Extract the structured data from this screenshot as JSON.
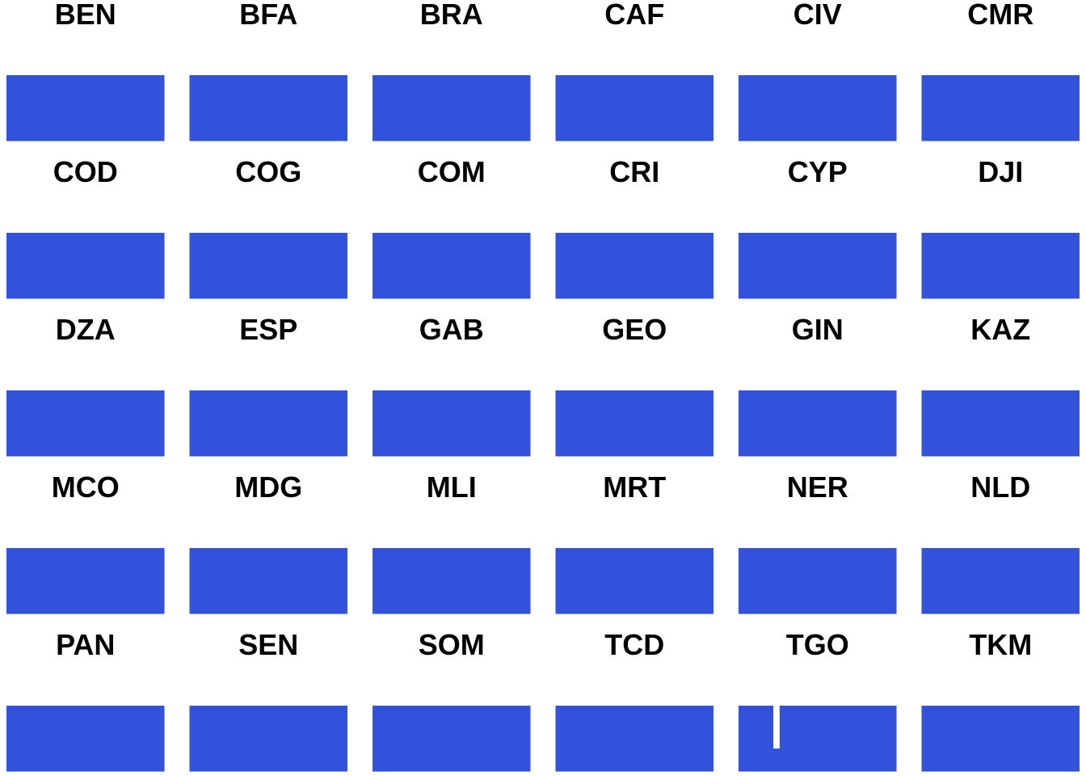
{
  "chart_data": {
    "type": "bar",
    "layout": "small-multiples",
    "grid": false,
    "legend": "none",
    "bar_color": "#3352DB",
    "panels": [
      {
        "label": "BEN",
        "segments": [
          {
            "start": 0,
            "end": 1
          }
        ]
      },
      {
        "label": "BFA",
        "segments": [
          {
            "start": 0,
            "end": 1
          }
        ]
      },
      {
        "label": "BRA",
        "segments": [
          {
            "start": 0,
            "end": 1
          }
        ]
      },
      {
        "label": "CAF",
        "segments": [
          {
            "start": 0,
            "end": 1
          }
        ]
      },
      {
        "label": "CIV",
        "segments": [
          {
            "start": 0,
            "end": 1
          }
        ]
      },
      {
        "label": "CMR",
        "segments": [
          {
            "start": 0,
            "end": 1
          }
        ]
      },
      {
        "label": "COD",
        "segments": [
          {
            "start": 0,
            "end": 1
          }
        ]
      },
      {
        "label": "COG",
        "segments": [
          {
            "start": 0,
            "end": 1
          }
        ]
      },
      {
        "label": "COM",
        "segments": [
          {
            "start": 0,
            "end": 1
          }
        ]
      },
      {
        "label": "CRI",
        "segments": [
          {
            "start": 0,
            "end": 1
          }
        ]
      },
      {
        "label": "CYP",
        "segments": [
          {
            "start": 0,
            "end": 1
          }
        ]
      },
      {
        "label": "DJI",
        "segments": [
          {
            "start": 0,
            "end": 1
          }
        ]
      },
      {
        "label": "DZA",
        "segments": [
          {
            "start": 0,
            "end": 1
          }
        ]
      },
      {
        "label": "ESP",
        "segments": [
          {
            "start": 0,
            "end": 1
          }
        ]
      },
      {
        "label": "GAB",
        "segments": [
          {
            "start": 0,
            "end": 1
          }
        ]
      },
      {
        "label": "GEO",
        "segments": [
          {
            "start": 0,
            "end": 1
          }
        ]
      },
      {
        "label": "GIN",
        "segments": [
          {
            "start": 0,
            "end": 1
          }
        ]
      },
      {
        "label": "KAZ",
        "segments": [
          {
            "start": 0,
            "end": 1
          }
        ]
      },
      {
        "label": "MCO",
        "segments": [
          {
            "start": 0,
            "end": 1
          }
        ]
      },
      {
        "label": "MDG",
        "segments": [
          {
            "start": 0,
            "end": 1
          }
        ]
      },
      {
        "label": "MLI",
        "segments": [
          {
            "start": 0,
            "end": 1
          }
        ]
      },
      {
        "label": "MRT",
        "segments": [
          {
            "start": 0,
            "end": 1
          }
        ]
      },
      {
        "label": "NER",
        "segments": [
          {
            "start": 0,
            "end": 1
          }
        ]
      },
      {
        "label": "NLD",
        "segments": [
          {
            "start": 0,
            "end": 1
          }
        ]
      },
      {
        "label": "PAN",
        "segments": [
          {
            "start": 0,
            "end": 1
          }
        ]
      },
      {
        "label": "SEN",
        "segments": [
          {
            "start": 0,
            "end": 1
          }
        ]
      },
      {
        "label": "SOM",
        "segments": [
          {
            "start": 0,
            "end": 1
          }
        ]
      },
      {
        "label": "TCD",
        "segments": [
          {
            "start": 0,
            "end": 1
          }
        ]
      },
      {
        "label": "TGO",
        "segments": [
          {
            "start": 0,
            "end": 0.22
          },
          {
            "start": 0.26,
            "end": 1
          }
        ],
        "gap_depth": 0.65
      },
      {
        "label": "TKM",
        "segments": [
          {
            "start": 0,
            "end": 1
          }
        ]
      }
    ]
  }
}
